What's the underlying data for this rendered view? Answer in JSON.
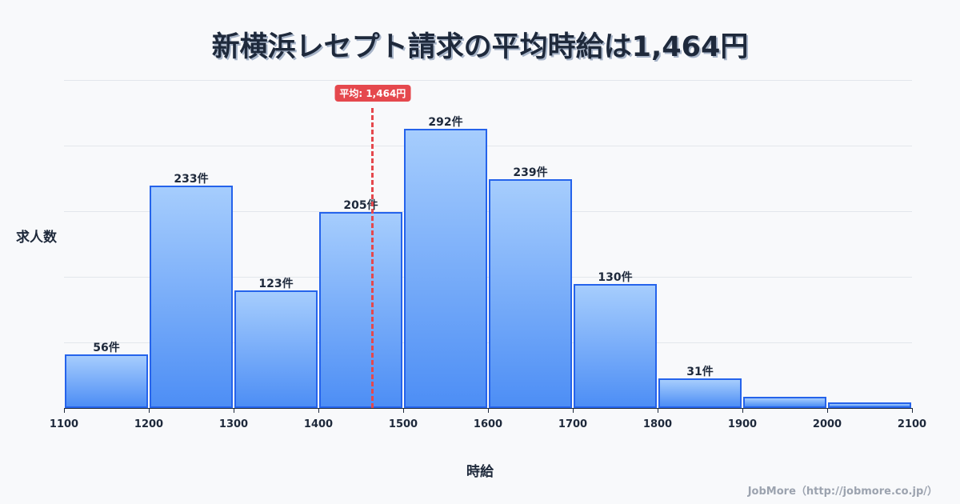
{
  "title": "新横浜レセプト請求の平均時給は1,464円",
  "average_badge": "平均: 1,464円",
  "ylabel": "求人数",
  "xlabel": "時給",
  "credit": "JobMore（http://jobmore.co.jp/）",
  "colors": {
    "bar_border": "#2563eb",
    "bar_top": "#a6cdfd",
    "bar_bottom": "#4d8ef5",
    "average_line": "#e5484d",
    "text": "#1e293b"
  },
  "chart_data": {
    "type": "bar",
    "title": "新横浜レセプト請求の平均時給は1,464円",
    "xlabel": "時給",
    "ylabel": "求人数",
    "bins": [
      [
        1100,
        1200
      ],
      [
        1200,
        1300
      ],
      [
        1300,
        1400
      ],
      [
        1400,
        1500
      ],
      [
        1500,
        1600
      ],
      [
        1600,
        1700
      ],
      [
        1700,
        1800
      ],
      [
        1800,
        1900
      ],
      [
        1900,
        2000
      ],
      [
        2000,
        2100
      ]
    ],
    "categories": [
      "1100-1200",
      "1200-1300",
      "1300-1400",
      "1400-1500",
      "1500-1600",
      "1600-1700",
      "1700-1800",
      "1800-1900",
      "1900-2000",
      "2000-2100"
    ],
    "values": [
      56,
      233,
      123,
      205,
      292,
      239,
      130,
      31,
      12,
      6
    ],
    "bar_labels": [
      "56件",
      "233件",
      "123件",
      "205件",
      "292件",
      "239件",
      "130件",
      "31件",
      "",
      ""
    ],
    "x_ticks": [
      "1100",
      "1200",
      "1300",
      "1400",
      "1500",
      "1600",
      "1700",
      "1800",
      "1900",
      "2000",
      "2100"
    ],
    "xlim": [
      1100,
      2100
    ],
    "ylim": [
      0,
      343
    ],
    "grid": true,
    "average": 1464,
    "average_label": "平均: 1,464円"
  }
}
